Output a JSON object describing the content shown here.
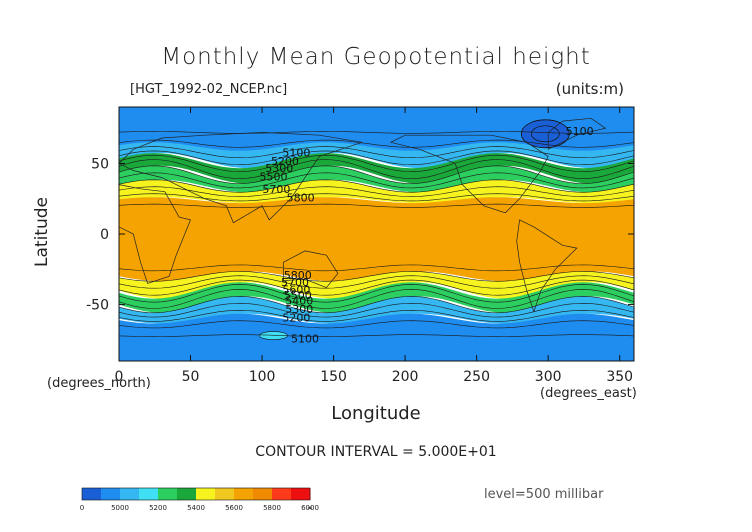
{
  "chart_data": {
    "type": "heatmap",
    "title": "Monthly Mean Geopotential height",
    "file_label": "[HGT_1992-02_NCEP.nc]",
    "units_label": "(units:m)",
    "xlabel": "Longitude",
    "ylabel": "Latitude",
    "x_unit_label": "(degrees_east)",
    "y_unit_label": "(degrees_north)",
    "xlim": [
      0,
      360
    ],
    "ylim": [
      -90,
      90
    ],
    "x_ticks": [
      0,
      50,
      100,
      150,
      200,
      250,
      300,
      350
    ],
    "y_ticks": [
      50,
      0,
      -50
    ],
    "contour_interval_label": "CONTOUR INTERVAL = 5.000E+01",
    "level_label": "level=500 millibar",
    "contour_labels": [
      {
        "value": "5100",
        "lon": 124,
        "lat": 55
      },
      {
        "value": "5200",
        "lon": 116,
        "lat": 49
      },
      {
        "value": "5300",
        "lon": 112,
        "lat": 44
      },
      {
        "value": "5500",
        "lon": 108,
        "lat": 38
      },
      {
        "value": "5700",
        "lon": 110,
        "lat": 29
      },
      {
        "value": "5800",
        "lon": 127,
        "lat": 23
      },
      {
        "value": "5800",
        "lon": 125,
        "lat": -32
      },
      {
        "value": "5700",
        "lon": 123,
        "lat": -37
      },
      {
        "value": "5600",
        "lon": 124,
        "lat": -42
      },
      {
        "value": "5500",
        "lon": 125,
        "lat": -46
      },
      {
        "value": "5400",
        "lon": 126,
        "lat": -50
      },
      {
        "value": "5300",
        "lon": 126,
        "lat": -56
      },
      {
        "value": "5200",
        "lon": 124,
        "lat": -62
      },
      {
        "value": "5100",
        "lon": 130,
        "lat": -77
      },
      {
        "value": "5100",
        "lon": 322,
        "lat": 70
      }
    ],
    "colorbar": {
      "labels": [
        "0",
        "5000",
        "5200",
        "5400",
        "5600",
        "5800",
        "6000",
        "∞"
      ],
      "colors": [
        "#1a5fd6",
        "#1f8cf0",
        "#35b7f2",
        "#3fe0f4",
        "#2ccf5f",
        "#1aa83a",
        "#f6f31e",
        "#f0c820",
        "#f5a300",
        "#f08a00",
        "#ff3a1a",
        "#ee1010"
      ]
    },
    "zones": [
      {
        "name": "",
        "lat_top": 90,
        "lat_bottom": 60,
        "color": "#1f8cf0"
      },
      {
        "name": "",
        "lat_top": 62,
        "lat_bottom": 52,
        "color": "#35b7f2"
      },
      {
        "name": "",
        "lat_top": 52,
        "lat_bottom": 42,
        "color": "#1aa83a"
      },
      {
        "name": "",
        "lat_top": 42,
        "lat_bottom": 34,
        "color": "#2ccf5f"
      },
      {
        "name": "",
        "lat_top": 34,
        "lat_bottom": 24,
        "color": "#f6f31e"
      },
      {
        "name": "",
        "lat_top": 24,
        "lat_bottom": -30,
        "color": "#f5a300"
      },
      {
        "name": "",
        "lat_top": -30,
        "lat_bottom": -40,
        "color": "#f6f31e"
      },
      {
        "name": "",
        "lat_top": -40,
        "lat_bottom": -50,
        "color": "#2ccf5f"
      },
      {
        "name": "",
        "lat_top": -50,
        "lat_bottom": -60,
        "color": "#35b7f2"
      },
      {
        "name": "",
        "lat_top": -60,
        "lat_bottom": -90,
        "color": "#1f8cf0"
      }
    ],
    "grid": false,
    "legend_position": "bottom-left"
  }
}
